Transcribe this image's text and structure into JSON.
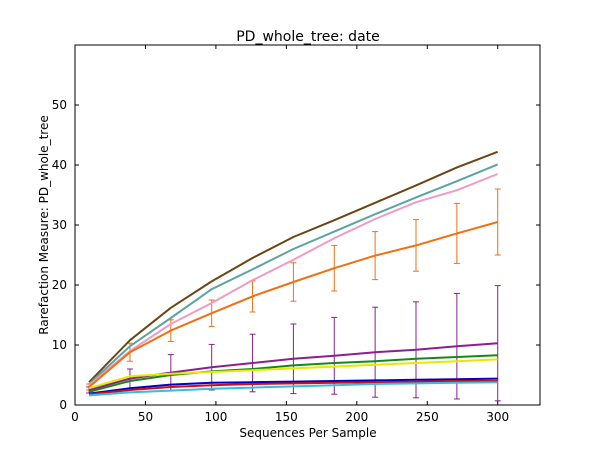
{
  "chart_data": {
    "type": "line",
    "title": "PD_whole_tree: date",
    "xlabel": "Sequences Per Sample",
    "ylabel": "Rarefaction Measure: PD_whole_tree",
    "xlim": [
      0,
      330
    ],
    "ylim": [
      0,
      60
    ],
    "xticks": [
      0,
      50,
      100,
      150,
      200,
      250,
      300
    ],
    "yticks": [
      0,
      10,
      20,
      30,
      40,
      50
    ],
    "grid": false,
    "legend": "none",
    "x": [
      10,
      39,
      68,
      97,
      126,
      155,
      184,
      213,
      242,
      271,
      300
    ],
    "series": [
      {
        "color": "#6b4513",
        "values": [
          3.8,
          10.8,
          16.2,
          20.6,
          24.5,
          28.0,
          30.8,
          33.7,
          36.6,
          39.6,
          42.2
        ]
      },
      {
        "color": "#5aa5a0",
        "values": [
          3.5,
          9.8,
          14.5,
          19.3,
          22.6,
          26.0,
          28.9,
          31.8,
          34.6,
          37.3,
          40.1
        ]
      },
      {
        "color": "#f09ac8",
        "values": [
          3.3,
          9.0,
          13.5,
          17.0,
          20.8,
          24.2,
          27.8,
          31.0,
          33.8,
          35.8,
          38.5
        ]
      },
      {
        "color": "#f07010",
        "values": [
          3.0,
          8.8,
          12.4,
          15.3,
          18.1,
          20.5,
          22.8,
          24.9,
          26.6,
          28.6,
          30.5
        ],
        "err": [
          0.5,
          1.5,
          1.8,
          2.2,
          2.6,
          3.2,
          3.8,
          4.0,
          4.3,
          5.0,
          5.5
        ]
      },
      {
        "color": "#8b1f8f",
        "values": [
          2.5,
          4.4,
          5.4,
          6.3,
          7.0,
          7.7,
          8.2,
          8.8,
          9.2,
          9.8,
          10.3
        ],
        "err": [
          0.5,
          1.6,
          3.0,
          3.8,
          4.8,
          5.8,
          6.4,
          7.5,
          8.0,
          8.8,
          9.6
        ]
      },
      {
        "color": "#148a14",
        "values": [
          2.2,
          4.0,
          5.0,
          5.6,
          6.0,
          6.6,
          7.0,
          7.3,
          7.7,
          8.0,
          8.3
        ]
      },
      {
        "color": "#e8e800",
        "values": [
          2.8,
          4.8,
          5.2,
          5.5,
          5.8,
          6.1,
          6.4,
          6.7,
          7.0,
          7.3,
          7.6
        ]
      },
      {
        "color": "#0000c8",
        "values": [
          1.9,
          2.8,
          3.4,
          3.7,
          3.8,
          3.9,
          4.0,
          4.1,
          4.2,
          4.3,
          4.4
        ]
      },
      {
        "color": "#d01010",
        "values": [
          1.8,
          2.5,
          3.0,
          3.3,
          3.5,
          3.6,
          3.7,
          3.8,
          3.9,
          4.0,
          4.0
        ]
      },
      {
        "color": "#30c0e0",
        "values": [
          1.6,
          2.1,
          2.4,
          2.7,
          2.9,
          3.1,
          3.3,
          3.5,
          3.6,
          3.7,
          3.8
        ]
      }
    ]
  }
}
